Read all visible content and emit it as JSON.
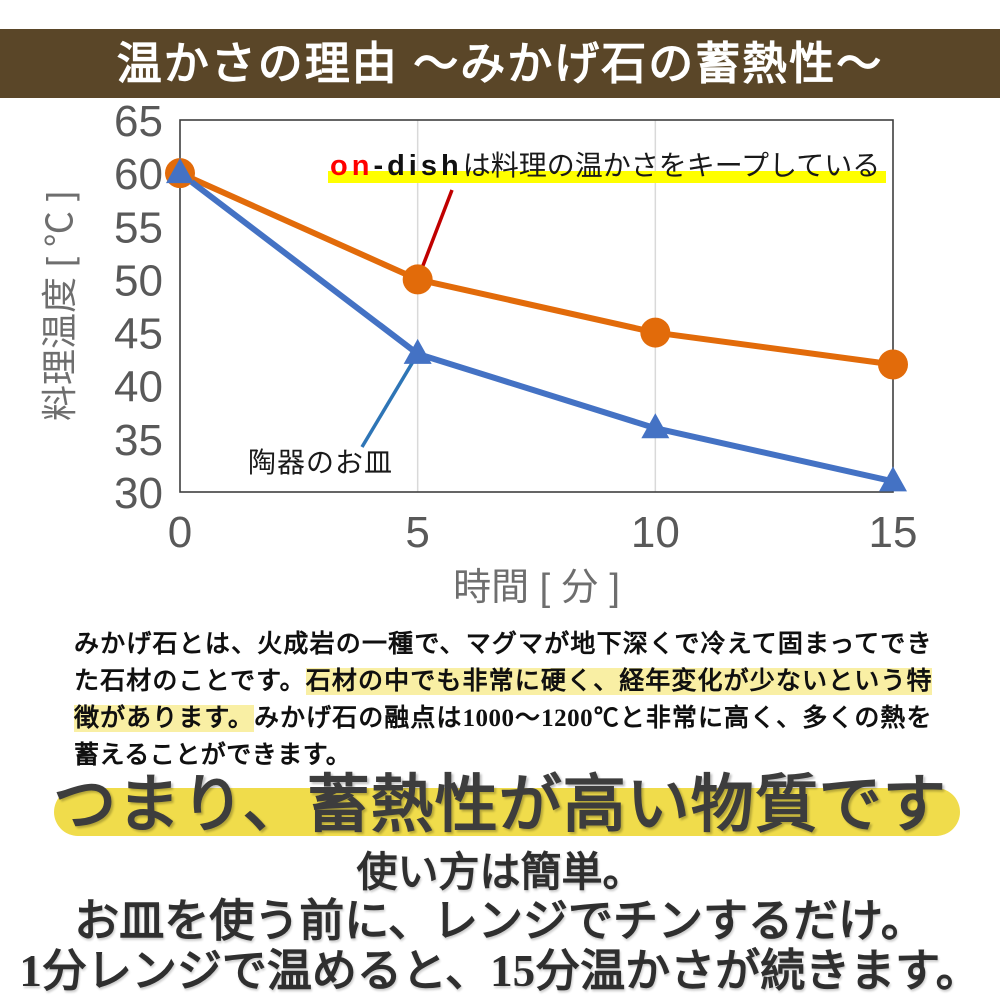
{
  "header": {
    "title": "温かさの理由 〜みかげ石の蓄熱性〜",
    "bg_color": "#5a4628",
    "text_color": "#ffffff"
  },
  "chart_data": {
    "type": "line",
    "x": [
      0,
      5,
      10,
      15
    ],
    "series": [
      {
        "name": "on-dish",
        "values": [
          60,
          50,
          45,
          42
        ],
        "color": "#e26b0a",
        "marker": "circle"
      },
      {
        "name": "陶器のお皿",
        "values": [
          60,
          43,
          36,
          31
        ],
        "color": "#4472c4",
        "marker": "triangle"
      }
    ],
    "xlabel": "時間 [ 分 ]",
    "ylabel": "料理温度 [ ℃ ]",
    "xlim": [
      0,
      15
    ],
    "ylim": [
      30,
      65
    ],
    "xticks": [
      0,
      5,
      10,
      15
    ],
    "yticks": [
      65,
      60,
      55,
      50,
      45,
      40,
      35,
      30
    ],
    "gridlines_x": [
      5,
      10
    ],
    "grid_color": "#d9d9d9",
    "axis_color": "#3f3f3f",
    "tick_color": "#595959",
    "axis_title_color": "#6e6e6e",
    "legend_position": "none",
    "annotations": [
      {
        "name": "on-dish-note",
        "prefix_red": "on",
        "prefix_black": "-dish",
        "text": "は料理の温かさをキープしている",
        "prefix_red_color": "#ff0000",
        "highlight_color": "#ffff00",
        "callout_color": "#c00000",
        "target": {
          "x": 5,
          "v": 50
        }
      },
      {
        "name": "ceramic-note",
        "text": "陶器のお皿",
        "callout_color": "#2e75b6",
        "target": {
          "x": 5,
          "v": 43
        }
      }
    ]
  },
  "paragraph": {
    "highlight_color": "#f9efa4",
    "segments": [
      {
        "text": "みかげ石とは、火成岩の一種で、マグマが地下深くで冷えて固まってできた石材のことです。",
        "highlight": false
      },
      {
        "text": "石材の中でも非常に硬く、経年変化が少ないという特徴があります。",
        "highlight": true
      },
      {
        "text": "みかげ石の融点は1000〜1200℃と非常に高く、多くの熱を蓄えることができます。",
        "highlight": false
      }
    ]
  },
  "headline": {
    "text": "つまり、蓄熱性が高い物質です",
    "bar_color": "#f0dc4b"
  },
  "usage": {
    "lines": [
      "使い方は簡単。",
      "お皿を使う前に、レンジでチンするだけ。",
      "1分レンジで温めると、15分温かさが続きます。"
    ]
  }
}
